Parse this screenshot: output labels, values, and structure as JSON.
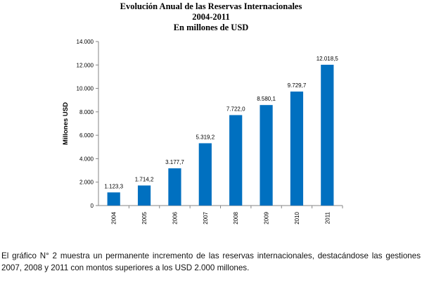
{
  "chart_data": {
    "type": "bar",
    "title_lines": [
      "Evolución Anual de las Reservas Internacionales",
      "2004-2011",
      "En millones de USD"
    ],
    "categories": [
      "2004",
      "2005",
      "2006",
      "2007",
      "2008",
      "2009",
      "2010",
      "2011"
    ],
    "values": [
      1123.3,
      1714.2,
      3177.7,
      5319.2,
      7722.0,
      8580.1,
      9729.7,
      12018.5
    ],
    "value_labels": [
      "1.123,3",
      "1.714,2",
      "3.177,7",
      "5.319,2",
      "7.722,0",
      "8.580,1",
      "9.729,7",
      "12.018,5"
    ],
    "ylabel": "Millones USD",
    "xlabel": "",
    "ylim": [
      0,
      14000
    ],
    "yticks": [
      0,
      2000,
      4000,
      6000,
      8000,
      10000,
      12000,
      14000
    ],
    "ytick_labels": [
      "0",
      "2.000",
      "4.000",
      "6.000",
      "8.000",
      "10.000",
      "12.000",
      "14.000"
    ],
    "bar_color": "#0070C0",
    "grid": false
  },
  "caption": "El gráfico N° 2 muestra un permanente incremento de las reservas internacionales, destacándose las gestiones 2007, 2008 y 2011 con montos superiores a los USD 2.000 millones."
}
